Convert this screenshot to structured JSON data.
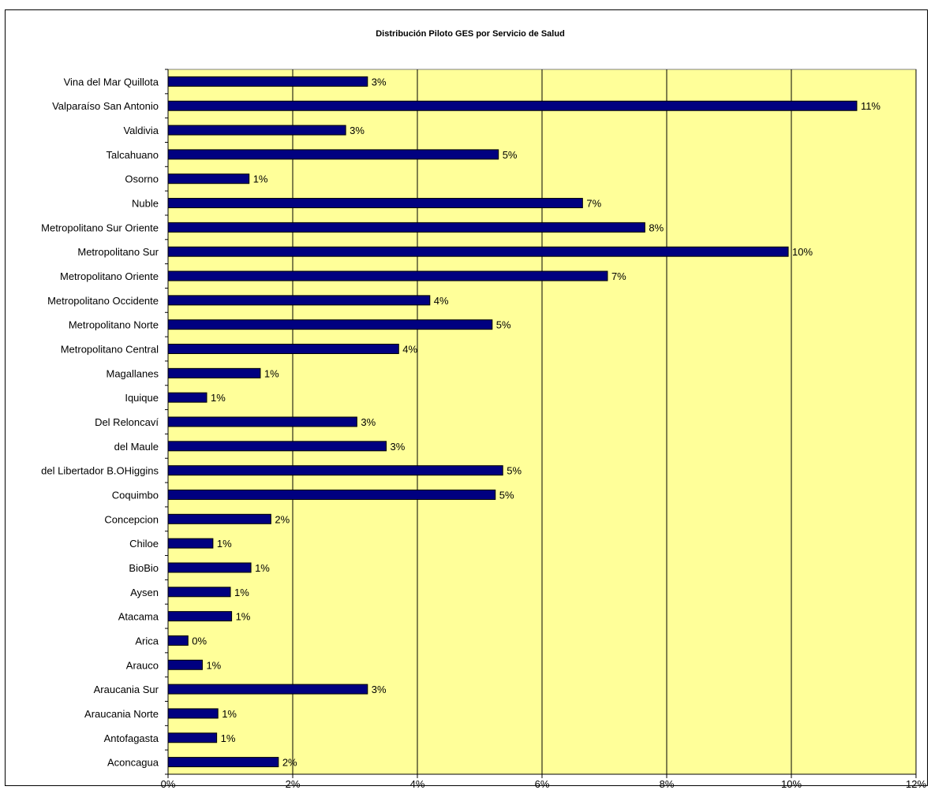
{
  "chart_data": {
    "type": "bar",
    "orientation": "horizontal",
    "title": "Distribución Piloto GES por Servicio de Salud",
    "xlabel": "",
    "ylabel": "",
    "xlim": [
      0,
      12
    ],
    "x_unit": "%",
    "x_ticks": [
      "0%",
      "2%",
      "4%",
      "6%",
      "8%",
      "10%",
      "12%"
    ],
    "grid": "vertical major gridlines",
    "plot_background": "#FFFF99",
    "bar_color": "#000080",
    "categories": [
      "Vina del Mar Quillota",
      "Valparaíso San Antonio",
      "Valdivia",
      "Talcahuano",
      "Osorno",
      "Nuble",
      "Metropolitano Sur Oriente",
      "Metropolitano Sur",
      "Metropolitano Oriente",
      "Metropolitano Occidente",
      "Metropolitano Norte",
      "Metropolitano Central",
      "Magallanes",
      "Iquique",
      "Del Reloncaví",
      "del Maule",
      "del Libertador B.OHiggins",
      "Coquimbo",
      "Concepcion",
      "Chiloe",
      "BioBio",
      "Aysen",
      "Atacama",
      "Arica",
      "Arauco",
      "Araucania Sur",
      "Araucania Norte",
      "Antofagasta",
      "Aconcagua"
    ],
    "values": [
      3.2,
      11.05,
      2.85,
      5.3,
      1.3,
      6.65,
      7.65,
      9.95,
      7.05,
      4.2,
      5.2,
      3.7,
      1.48,
      0.62,
      3.03,
      3.5,
      5.37,
      5.25,
      1.65,
      0.72,
      1.33,
      1.0,
      1.02,
      0.32,
      0.55,
      3.2,
      0.8,
      0.78,
      1.77
    ],
    "data_labels": [
      "3%",
      "11%",
      "3%",
      "5%",
      "1%",
      "7%",
      "8%",
      "10%",
      "7%",
      "4%",
      "5%",
      "4%",
      "1%",
      "1%",
      "3%",
      "3%",
      "5%",
      "5%",
      "2%",
      "1%",
      "1%",
      "1%",
      "1%",
      "0%",
      "1%",
      "3%",
      "1%",
      "1%",
      "2%"
    ]
  }
}
